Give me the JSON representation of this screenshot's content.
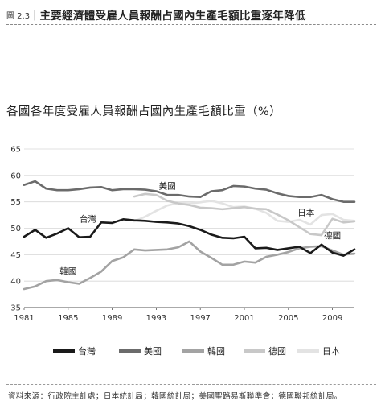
{
  "figure": {
    "number": "圖 2.3",
    "separator": "|",
    "title": "主要經濟體受雇人員報酬占國內生產毛額比重逐年降低"
  },
  "chart_data": {
    "type": "line",
    "title": "各國各年度受雇人員報酬占國內生產毛額比重（%）",
    "xlabel": "",
    "ylabel": "",
    "xlim": [
      1981,
      2011
    ],
    "ylim": [
      35,
      65
    ],
    "yticks": [
      35,
      40,
      45,
      50,
      55,
      60,
      65
    ],
    "xticks": [
      1981,
      1985,
      1989,
      1993,
      1997,
      2001,
      2005,
      2009
    ],
    "grid": "horizontal",
    "legend_position": "bottom",
    "x": [
      1981,
      1982,
      1983,
      1984,
      1985,
      1986,
      1987,
      1988,
      1989,
      1990,
      1991,
      1992,
      1993,
      1994,
      1995,
      1996,
      1997,
      1998,
      1999,
      2000,
      2001,
      2002,
      2003,
      2004,
      2005,
      2006,
      2007,
      2008,
      2009,
      2010,
      2011
    ],
    "series": [
      {
        "name": "台灣",
        "color": "#1a1a1a",
        "width": 2.6,
        "label": "台灣",
        "values": [
          48.4,
          49.7,
          48.2,
          49.0,
          50.0,
          48.3,
          48.4,
          51.1,
          51.0,
          51.7,
          51.5,
          51.4,
          51.2,
          51.1,
          50.9,
          50.4,
          49.7,
          48.8,
          48.2,
          48.1,
          48.4,
          46.2,
          46.3,
          45.9,
          46.2,
          46.5,
          45.3,
          46.9,
          45.4,
          44.8,
          46.0
        ]
      },
      {
        "name": "美國",
        "color": "#6b6b6b",
        "width": 2.6,
        "label": "美國",
        "values": [
          58.2,
          58.9,
          57.5,
          57.2,
          57.2,
          57.4,
          57.7,
          57.8,
          57.2,
          57.4,
          57.4,
          57.3,
          57.0,
          56.3,
          56.3,
          56.0,
          55.9,
          57.0,
          57.2,
          58.0,
          57.9,
          57.5,
          57.3,
          56.6,
          56.1,
          55.9,
          55.9,
          56.3,
          55.5,
          55.0,
          55.0
        ]
      },
      {
        "name": "韓國",
        "color": "#a3a3a3",
        "width": 2.6,
        "label": "韓國",
        "values": [
          38.5,
          39.0,
          40.0,
          40.2,
          39.8,
          39.5,
          40.6,
          41.8,
          43.8,
          44.5,
          46.0,
          45.8,
          45.9,
          46.0,
          46.4,
          47.5,
          45.6,
          44.4,
          43.1,
          43.1,
          43.7,
          43.5,
          44.6,
          45.0,
          45.5,
          46.2,
          46.5,
          46.6,
          45.8,
          45.0,
          45.2
        ]
      },
      {
        "name": "德國",
        "color": "#c8c8c8",
        "width": 2.6,
        "label": "德國",
        "values": [
          null,
          null,
          null,
          null,
          null,
          null,
          null,
          null,
          null,
          null,
          56.0,
          56.5,
          56.3,
          55.2,
          54.7,
          54.4,
          53.9,
          53.8,
          53.6,
          53.8,
          54.0,
          53.7,
          53.6,
          52.6,
          51.5,
          50.2,
          48.9,
          48.7,
          51.8,
          51.1,
          51.3
        ]
      },
      {
        "name": "日本",
        "color": "#e3e3e3",
        "width": 2.6,
        "label": "日本",
        "values": [
          null,
          null,
          null,
          null,
          null,
          null,
          null,
          null,
          null,
          null,
          51.3,
          52.2,
          53.3,
          54.3,
          54.8,
          54.7,
          54.9,
          55.2,
          54.7,
          54.0,
          54.1,
          53.7,
          52.9,
          51.4,
          51.2,
          51.6,
          50.7,
          52.5,
          52.7,
          51.6,
          51.4
        ]
      }
    ]
  },
  "source": "資料來源：行政院主計處；日本統計局；韓國統計局；美國聖路易斯聯準會；德國聯邦統計局。"
}
